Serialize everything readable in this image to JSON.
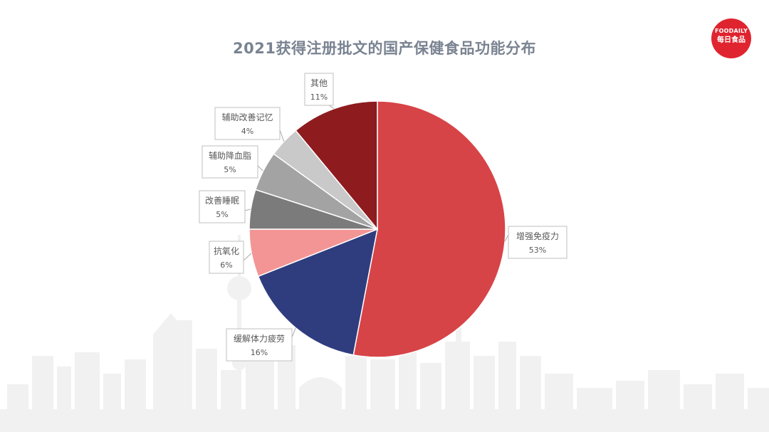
{
  "chart_data": {
    "type": "pie",
    "title": "2021获得注册批文的国产保健食品功能分布",
    "slices": [
      {
        "label": "增强免疫力",
        "value": 53,
        "value_text": "53%",
        "color": "#d74447"
      },
      {
        "label": "缓解体力疲劳",
        "value": 16,
        "value_text": "16%",
        "color": "#2f3d7f"
      },
      {
        "label": "抗氧化",
        "value": 6,
        "value_text": "6%",
        "color": "#f39595"
      },
      {
        "label": "改善睡眠",
        "value": 5,
        "value_text": "5%",
        "color": "#7b7b7b"
      },
      {
        "label": "辅助降血脂",
        "value": 5,
        "value_text": "5%",
        "color": "#a3a3a3"
      },
      {
        "label": "辅助改善记忆",
        "value": 4,
        "value_text": "4%",
        "color": "#c9c9c9"
      },
      {
        "label": "其他",
        "value": 11,
        "value_text": "11%",
        "color": "#8e1c1f"
      }
    ],
    "start_angle": "12 o'clock",
    "direction": "clockwise",
    "labels": "callout boxes with leader lines"
  },
  "logo": {
    "text_en": "FOODAILY",
    "text_cn": "每日食品",
    "color": "#e0242f"
  }
}
